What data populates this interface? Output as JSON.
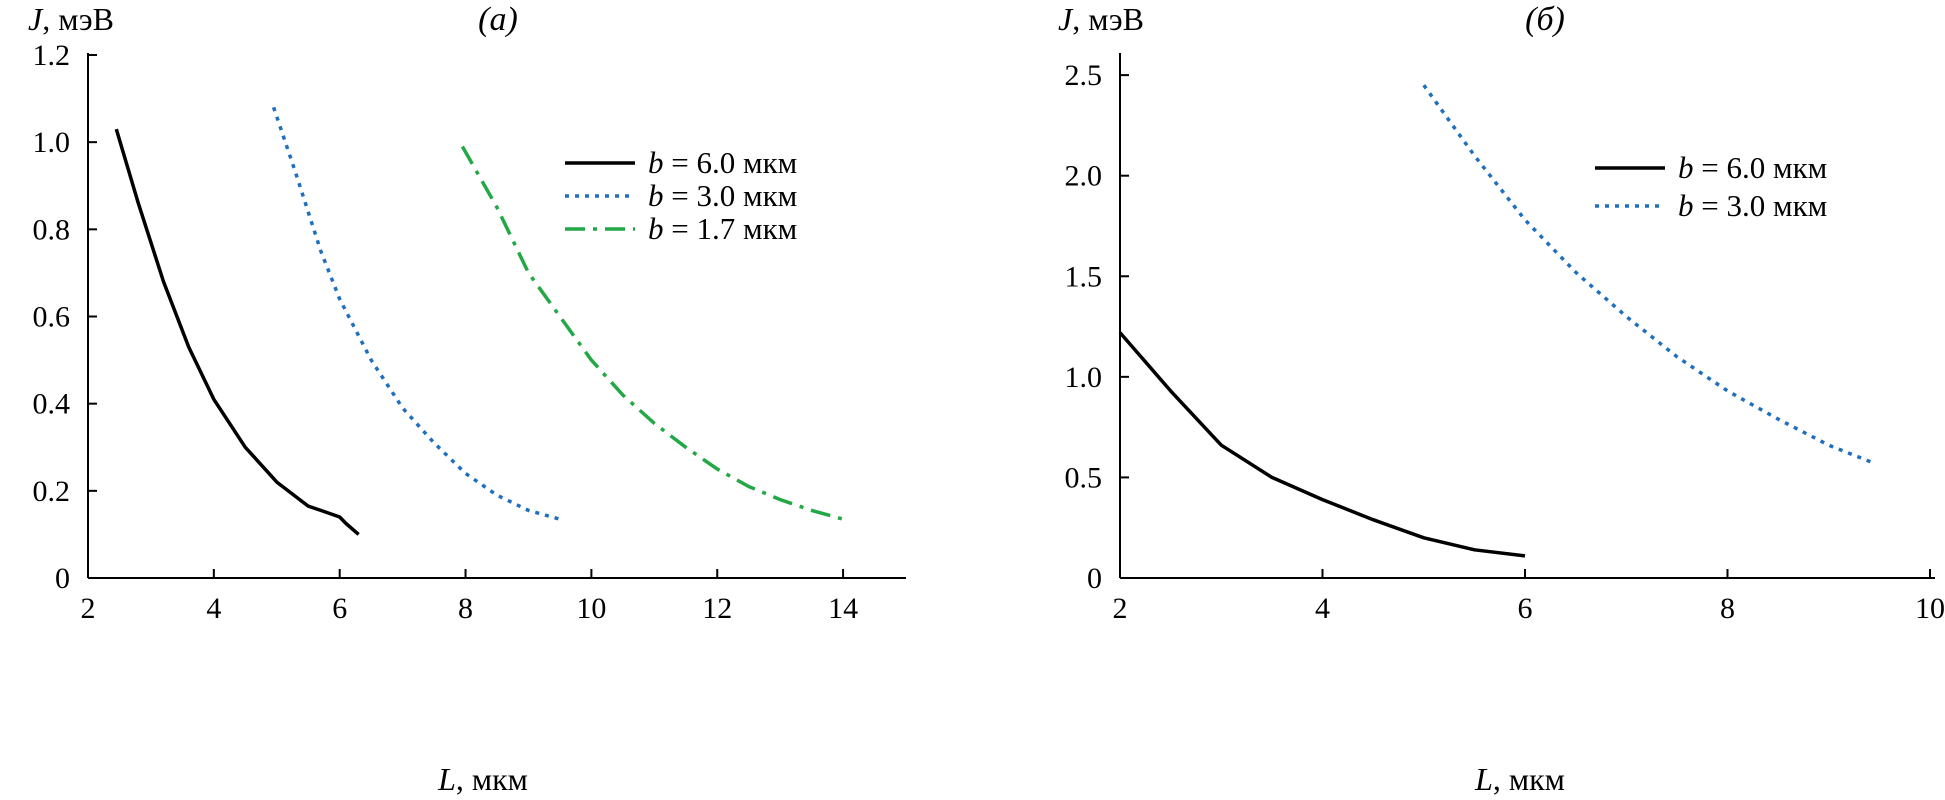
{
  "chart_data": [
    {
      "type": "line",
      "panel_label": "(а)",
      "xlabel": "L, мкм",
      "ylabel": "J, мэВ",
      "xlim": [
        2,
        15
      ],
      "ylim": [
        0,
        1.2
      ],
      "xticks": [
        2,
        4,
        6,
        8,
        10,
        12,
        14
      ],
      "yticks": [
        0,
        0.2,
        0.4,
        0.6,
        0.8,
        1.0,
        1.2
      ],
      "xtick_labels": [
        "2",
        "4",
        "6",
        "8",
        "10",
        "12",
        "14"
      ],
      "ytick_labels": [
        "0",
        "0.2",
        "0.4",
        "0.6",
        "0.8",
        "1.0",
        "1.2"
      ],
      "legend_position": "top-right",
      "grid": false,
      "series": [
        {
          "name": "b = 6.0 мкм",
          "legend_var": "b",
          "legend_rest": " = 6.0 мкм",
          "style": "solid",
          "color": "#000000",
          "x": [
            2.45,
            2.8,
            3.2,
            3.6,
            4.0,
            4.5,
            5.0,
            5.5,
            5.7,
            6.0,
            6.1,
            6.3
          ],
          "y": [
            1.03,
            0.86,
            0.68,
            0.53,
            0.41,
            0.3,
            0.22,
            0.165,
            0.155,
            0.14,
            0.125,
            0.1
          ]
        },
        {
          "name": "b = 3.0 мкм",
          "legend_var": "b",
          "legend_rest": " = 3.0 мкм",
          "style": "dotted",
          "color": "#1f6fbf",
          "x": [
            4.95,
            5.3,
            5.7,
            6.0,
            6.5,
            7.0,
            7.5,
            8.0,
            8.5,
            9.0,
            9.5
          ],
          "y": [
            1.08,
            0.93,
            0.75,
            0.64,
            0.5,
            0.39,
            0.31,
            0.24,
            0.19,
            0.155,
            0.135
          ]
        },
        {
          "name": "b = 1.7 мкм",
          "legend_var": "b",
          "legend_rest": " = 1.7 мкм",
          "style": "dashdot",
          "color": "#22a845",
          "x": [
            7.95,
            8.5,
            9.0,
            9.5,
            10.0,
            10.5,
            11.0,
            11.5,
            12.0,
            12.5,
            13.0,
            13.5,
            14.0
          ],
          "y": [
            0.99,
            0.85,
            0.7,
            0.6,
            0.5,
            0.42,
            0.355,
            0.3,
            0.25,
            0.21,
            0.18,
            0.155,
            0.135
          ]
        }
      ]
    },
    {
      "type": "line",
      "panel_label": "(б)",
      "xlabel": "L, мкм",
      "ylabel": "J, мэВ",
      "xlim": [
        2,
        10
      ],
      "ylim": [
        0,
        2.6
      ],
      "xticks": [
        2,
        4,
        6,
        8,
        10
      ],
      "yticks": [
        0,
        0.5,
        1.0,
        1.5,
        2.0,
        2.5
      ],
      "xtick_labels": [
        "2",
        "4",
        "6",
        "8",
        "10"
      ],
      "ytick_labels": [
        "0",
        "0.5",
        "1.0",
        "1.5",
        "2.0",
        "2.5"
      ],
      "legend_position": "top-right",
      "grid": false,
      "series": [
        {
          "name": "b = 6.0 мкм",
          "legend_var": "b",
          "legend_rest": " = 6.0 мкм",
          "style": "solid",
          "color": "#000000",
          "x": [
            2.0,
            2.5,
            3.0,
            3.5,
            4.0,
            4.5,
            5.0,
            5.5,
            6.0
          ],
          "y": [
            1.22,
            0.93,
            0.66,
            0.5,
            0.39,
            0.29,
            0.2,
            0.14,
            0.11
          ]
        },
        {
          "name": "b = 3.0 мкм",
          "legend_var": "b",
          "legend_rest": " = 3.0 мкм",
          "style": "dotted",
          "color": "#1f6fbf",
          "x": [
            5.0,
            5.5,
            6.0,
            6.5,
            7.0,
            7.5,
            8.0,
            8.5,
            9.0,
            9.45
          ],
          "y": [
            2.45,
            2.1,
            1.78,
            1.52,
            1.3,
            1.1,
            0.93,
            0.79,
            0.66,
            0.57
          ]
        }
      ]
    }
  ]
}
